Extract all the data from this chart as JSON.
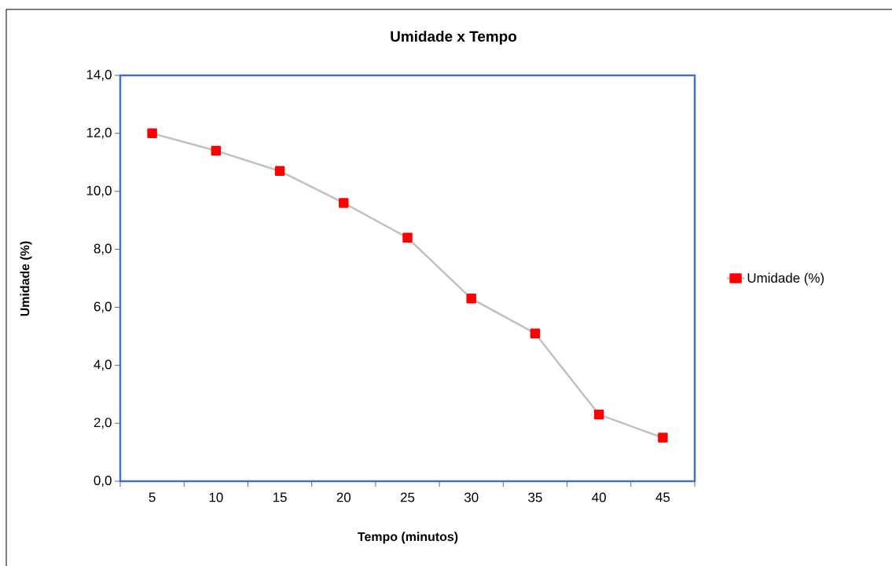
{
  "chart_data": {
    "type": "line",
    "title": "Umidade x Tempo",
    "xlabel": "Tempo (minutos)",
    "ylabel": "Umidade (%)",
    "categories": [
      "5",
      "10",
      "15",
      "20",
      "25",
      "30",
      "35",
      "40",
      "45"
    ],
    "series": [
      {
        "name": "Umidade (%)",
        "color": "#ff0000",
        "values": [
          12.0,
          11.4,
          10.7,
          9.6,
          8.4,
          6.3,
          5.1,
          2.3,
          1.5
        ]
      }
    ],
    "ylim": [
      0,
      14
    ],
    "yticks": [
      {
        "value": 0,
        "label": "0,0"
      },
      {
        "value": 2,
        "label": "2,0"
      },
      {
        "value": 4,
        "label": "4,0"
      },
      {
        "value": 6,
        "label": "6,0"
      },
      {
        "value": 8,
        "label": "8,0"
      },
      {
        "value": 10,
        "label": "10,0"
      },
      {
        "value": 12,
        "label": "12,0"
      },
      {
        "value": 14,
        "label": "14,0"
      }
    ],
    "legend": "right",
    "marker": "square",
    "line_style": "solid"
  }
}
